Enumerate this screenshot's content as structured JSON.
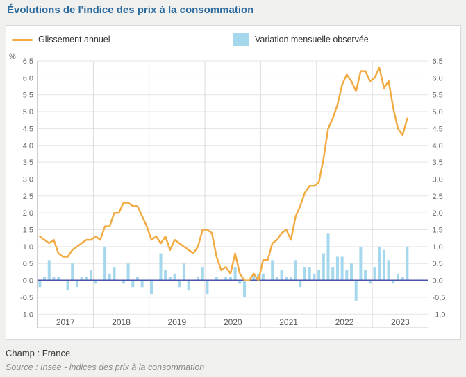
{
  "page": {
    "title": "Évolutions de l'indice des prix à la consommation",
    "footer": {
      "champ": "Champ : France",
      "source": "Source : Insee - indices des prix à la consommation"
    }
  },
  "legend": [
    {
      "label": "Glissement annuel",
      "swatch": "line-swatch",
      "color": "#f2ab43"
    },
    {
      "label": "Variation mensuelle observée",
      "swatch": "bar-swatch",
      "color": "#a5d8ed"
    }
  ],
  "chart_data": {
    "type": "line+bar",
    "title": "Évolutions de l'indice des prix à la consommation",
    "unit_label": "%",
    "frequency": "monthly",
    "x_start": "2017-01",
    "x_end": "2023-08",
    "years": [
      "2017",
      "2018",
      "2019",
      "2020",
      "2021",
      "2022",
      "2023"
    ],
    "ylim": [
      -1.0,
      6.5
    ],
    "ytick_step": 0.5,
    "ytick_labels": [
      "6,5",
      "6,0",
      "5,5",
      "5,0",
      "4,5",
      "4,0",
      "3,5",
      "3,0",
      "2,5",
      "2,0",
      "1,5",
      "1,0",
      "0,5",
      "0,0",
      "-0,5",
      "-1,0"
    ],
    "grid": true,
    "legend_position": "top",
    "colors": {
      "line": "#f2ab43",
      "bar": "#a5d8ed",
      "zero_line": "#4a54a8",
      "gridline": "#e3e3e3",
      "axis_line": "#9b9b9b",
      "tick_band_line": "#cccccc",
      "axis_label": "#666666",
      "year_label": "#555555"
    },
    "series": [
      {
        "name": "Glissement annuel",
        "type": "line",
        "color": "#f2ab43",
        "values_by_year": {
          "2017": [
            1.3,
            1.2,
            1.1,
            1.2,
            0.8,
            0.7,
            0.7,
            0.9,
            1.0,
            1.1,
            1.2,
            1.2
          ],
          "2018": [
            1.3,
            1.2,
            1.6,
            1.6,
            2.0,
            2.0,
            2.3,
            2.3,
            2.2,
            2.2,
            1.9,
            1.6
          ],
          "2019": [
            1.2,
            1.3,
            1.1,
            1.3,
            0.9,
            1.2,
            1.1,
            1.0,
            0.9,
            0.8,
            1.0,
            1.5
          ],
          "2020": [
            1.5,
            1.4,
            0.7,
            0.3,
            0.4,
            0.2,
            0.8,
            0.2,
            0.0,
            0.0,
            0.2,
            0.0
          ],
          "2021": [
            0.6,
            0.6,
            1.1,
            1.2,
            1.4,
            1.5,
            1.2,
            1.9,
            2.2,
            2.6,
            2.8,
            2.8
          ],
          "2022": [
            2.9,
            3.6,
            4.5,
            4.8,
            5.2,
            5.8,
            6.1,
            5.9,
            5.6,
            6.2,
            6.2,
            5.9
          ],
          "2023": [
            6.0,
            6.3,
            5.7,
            5.9,
            5.1,
            4.5,
            4.3,
            4.8
          ]
        }
      },
      {
        "name": "Variation mensuelle observée",
        "type": "bar",
        "color": "#a5d8ed",
        "values_by_year": {
          "2017": [
            -0.2,
            0.1,
            0.6,
            0.1,
            0.1,
            0.0,
            -0.3,
            0.5,
            -0.2,
            0.1,
            0.1,
            0.3
          ],
          "2018": [
            -0.1,
            0.0,
            1.0,
            0.2,
            0.4,
            0.0,
            -0.1,
            0.5,
            -0.2,
            0.1,
            -0.2,
            0.0
          ],
          "2019": [
            -0.4,
            0.0,
            0.8,
            0.3,
            0.1,
            0.2,
            -0.2,
            0.5,
            -0.3,
            0.0,
            0.1,
            0.4
          ],
          "2020": [
            -0.4,
            0.0,
            0.1,
            0.0,
            0.1,
            0.1,
            0.4,
            -0.1,
            -0.5,
            0.0,
            0.2,
            0.2
          ],
          "2021": [
            0.2,
            0.0,
            0.6,
            0.1,
            0.3,
            0.1,
            0.1,
            0.6,
            -0.2,
            0.4,
            0.4,
            0.2
          ],
          "2022": [
            0.3,
            0.8,
            1.4,
            0.4,
            0.7,
            0.7,
            0.3,
            0.5,
            -0.6,
            1.0,
            0.3,
            -0.1
          ],
          "2023": [
            0.4,
            1.0,
            0.9,
            0.6,
            -0.1,
            0.2,
            0.1,
            1.0
          ]
        }
      }
    ]
  }
}
